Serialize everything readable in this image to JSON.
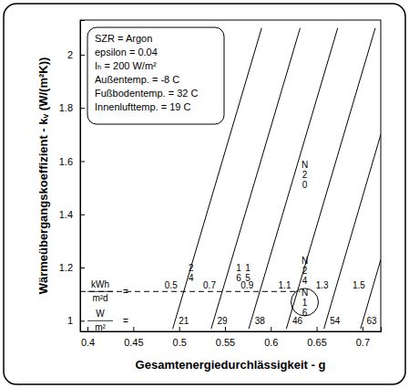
{
  "chart_data": {
    "type": "line",
    "x_label": "Gesamtenergiedurchlässigkeit - g",
    "y_label": "Wärmeübergangskoeffizient - kᵥ (W/(m²K))",
    "xlim": [
      0.392,
      0.72
    ],
    "ylim": [
      0.96,
      2.13
    ],
    "xticks": [
      0.4,
      0.45,
      0.5,
      0.55,
      0.6,
      0.65,
      0.7
    ],
    "yticks": [
      1,
      1.2,
      1.4,
      1.6,
      1.8,
      2
    ],
    "color": "#000000",
    "series": [
      {
        "x": [
          0.493,
          0.59
        ],
        "values": [
          0.97,
          2.1
        ]
      },
      {
        "x": [
          0.535,
          0.632
        ],
        "values": [
          0.97,
          2.1
        ]
      },
      {
        "x": [
          0.576,
          0.673
        ],
        "values": [
          0.97,
          2.1
        ]
      },
      {
        "x": [
          0.617,
          0.714
        ],
        "values": [
          0.97,
          2.1
        ]
      },
      {
        "x": [
          0.658,
          0.72
        ],
        "values": [
          0.97,
          1.7
        ]
      },
      {
        "x": [
          0.698,
          0.72
        ],
        "values": [
          0.97,
          1.23
        ]
      }
    ],
    "reference_line": {
      "y": 1.11,
      "x": [
        0.392,
        0.632
      ],
      "line_style": "dashed"
    },
    "info_box": [
      "SZR = Argon",
      "epsilon = 0.04",
      "Iₕ = 200 W/m²",
      "Außentemp. = -8 C",
      "Fußbodentemp. = 32 C",
      "Innenlufttemp. = 19 C"
    ],
    "line_labels": [
      {
        "unit_numerator": "kWh",
        "unit_denominator": "m²d",
        "sign": "=",
        "y": 1.11,
        "values": [
          0.5,
          0.7,
          0.9,
          1.1,
          1.3,
          1.5
        ]
      },
      {
        "unit_numerator": "W",
        "unit_denominator": "m²",
        "sign": "=",
        "y": 1,
        "values": [
          21,
          29,
          38,
          46,
          54,
          63
        ]
      }
    ],
    "annotations": [
      {
        "text": "24",
        "x": 0.513,
        "y": 1.18
      },
      {
        "text": "16",
        "x": 0.565,
        "y": 1.18
      },
      {
        "text": "15",
        "x": 0.575,
        "y": 1.18
      },
      {
        "text": "N20",
        "x": 0.637,
        "y": 1.55
      },
      {
        "text": "N24",
        "x": 0.637,
        "y": 1.19
      },
      {
        "text": "N16",
        "x": 0.637,
        "y": 1.07,
        "marker": "circle"
      }
    ]
  }
}
